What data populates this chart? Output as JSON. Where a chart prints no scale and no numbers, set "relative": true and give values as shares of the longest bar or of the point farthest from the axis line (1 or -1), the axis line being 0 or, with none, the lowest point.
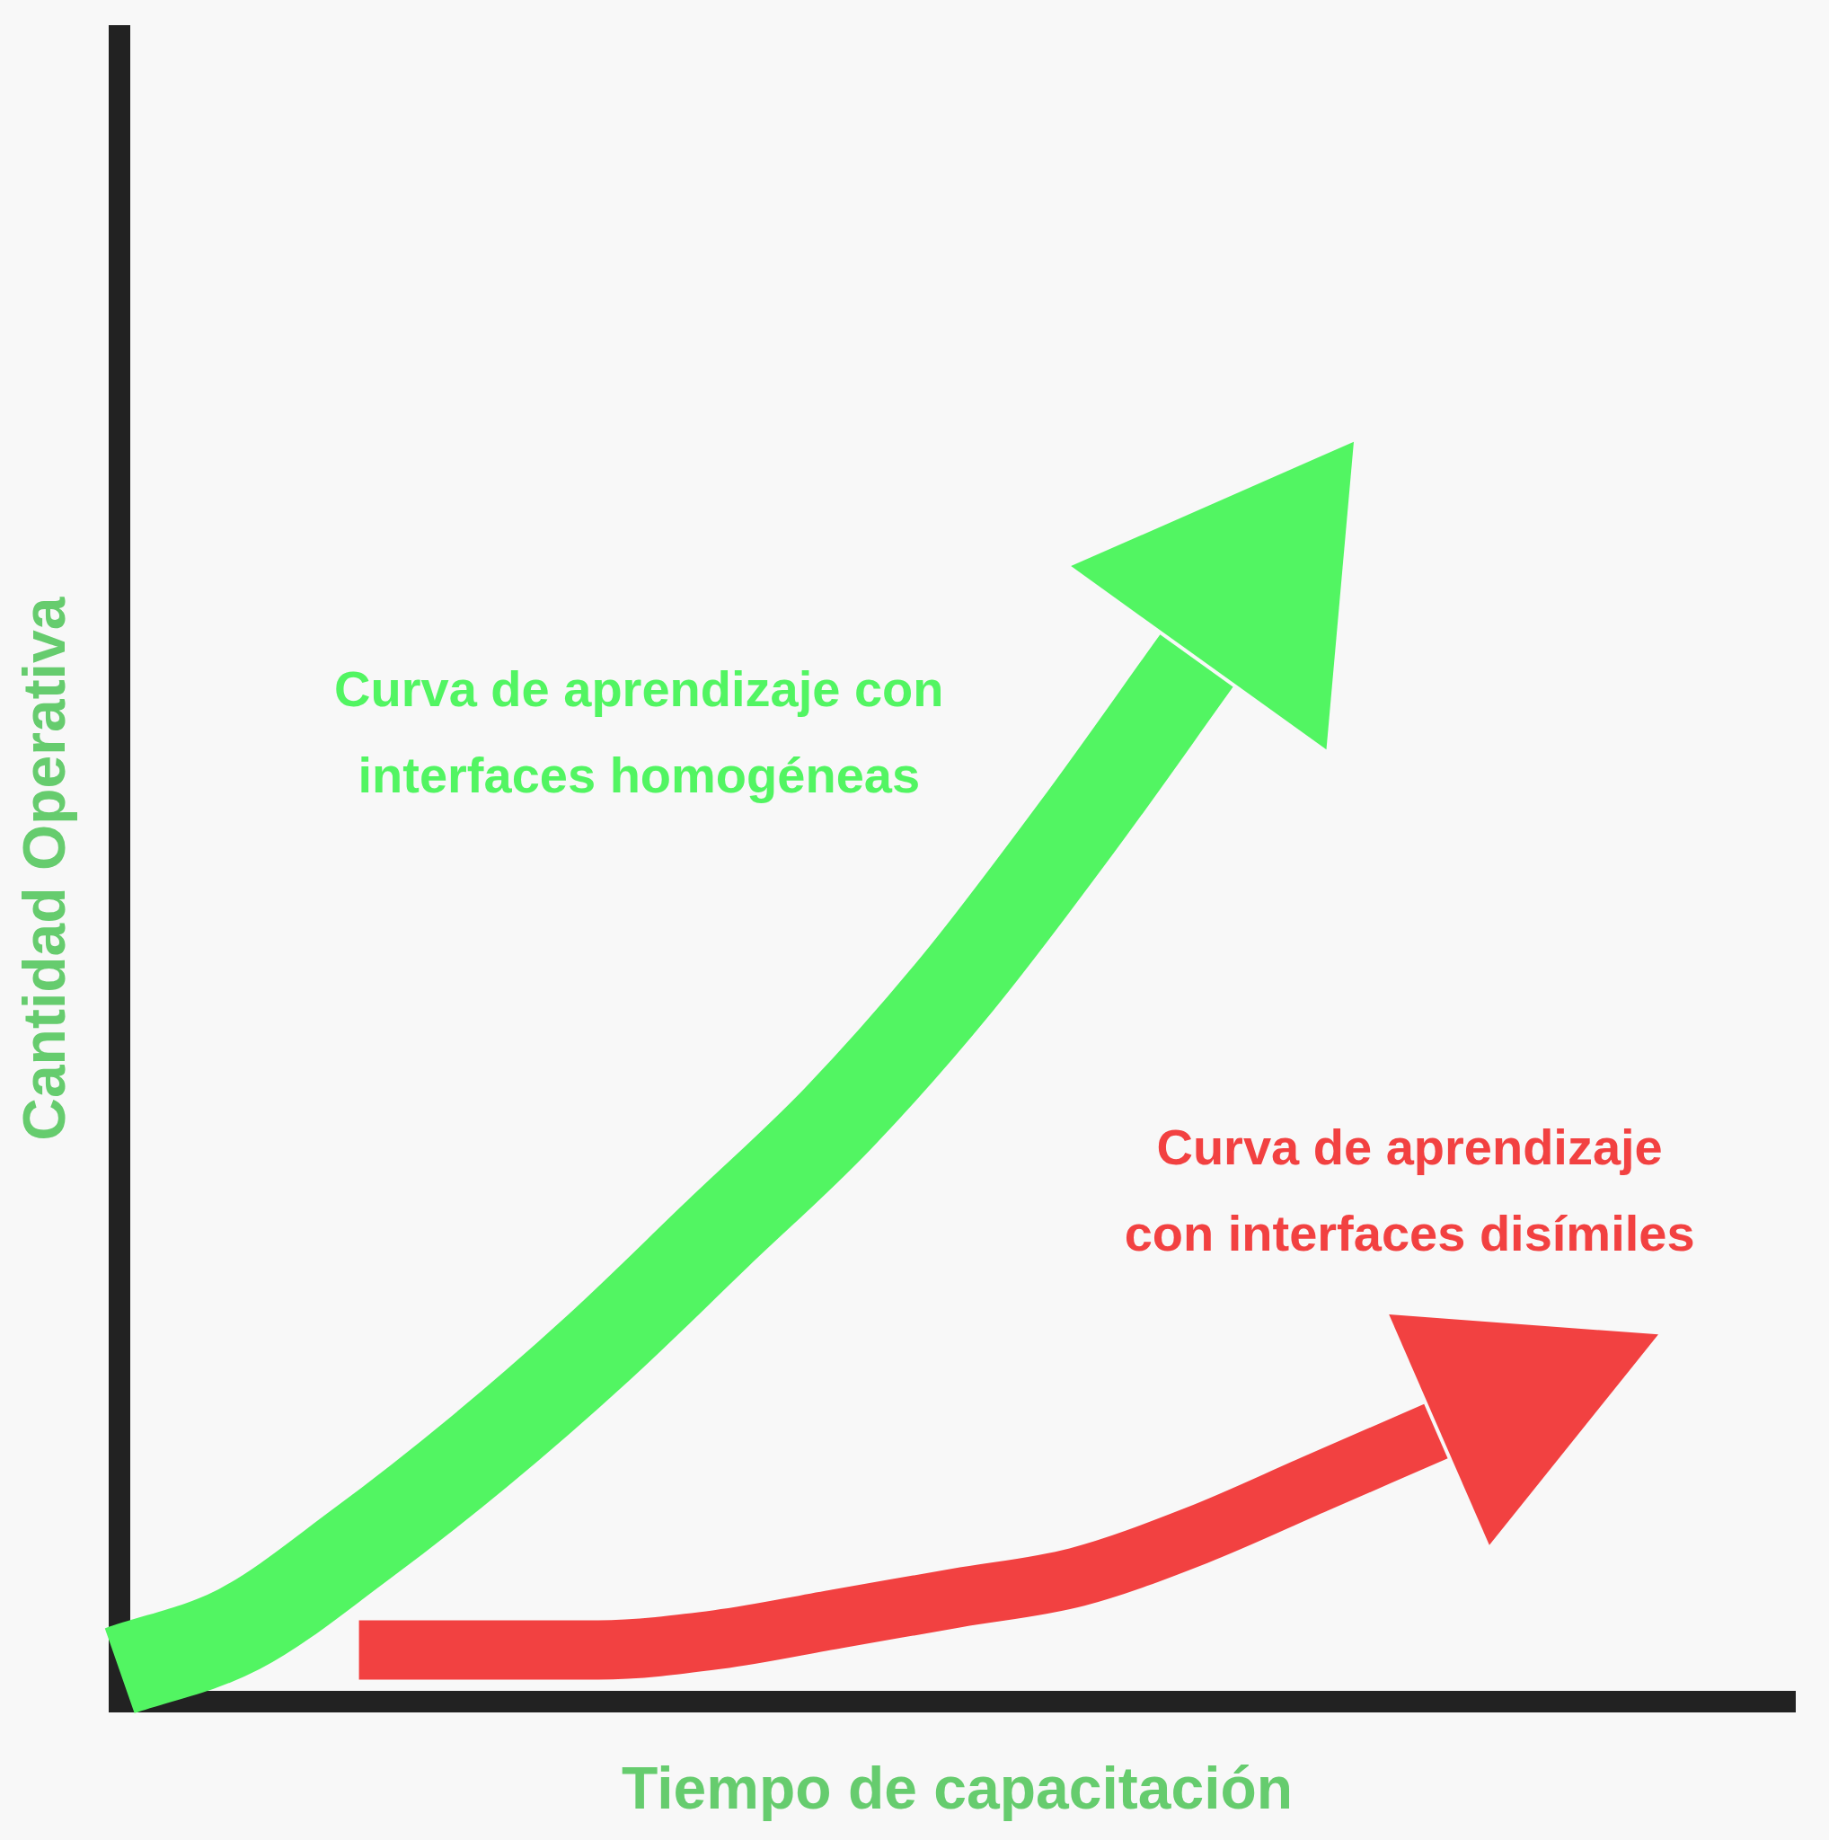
{
  "chart_data": {
    "type": "line",
    "relative": true,
    "xlabel": "Tiempo de capacitación",
    "ylabel": "Cantidad Operativa",
    "categories": [
      null,
      null,
      null,
      null,
      null,
      null,
      null,
      null,
      null,
      null,
      null,
      null,
      null,
      null,
      null
    ],
    "series": [
      {
        "name": "Curva de aprendizaje con interfaces homogéneas",
        "color": "#52f562",
        "values": [
          0.03,
          0.07,
          0.15,
          0.24,
          0.34,
          0.45,
          0.56,
          0.69,
          0.84,
          1.0,
          null,
          null,
          null,
          null,
          null
        ]
      },
      {
        "name": "Curva de aprendizaje con interfaces disímiles",
        "color": "#f24141",
        "values": [
          null,
          null,
          0.05,
          0.05,
          0.05,
          0.06,
          0.08,
          0.1,
          0.12,
          0.16,
          0.21,
          0.26,
          null,
          null,
          null
        ]
      }
    ],
    "legend": false
  }
}
